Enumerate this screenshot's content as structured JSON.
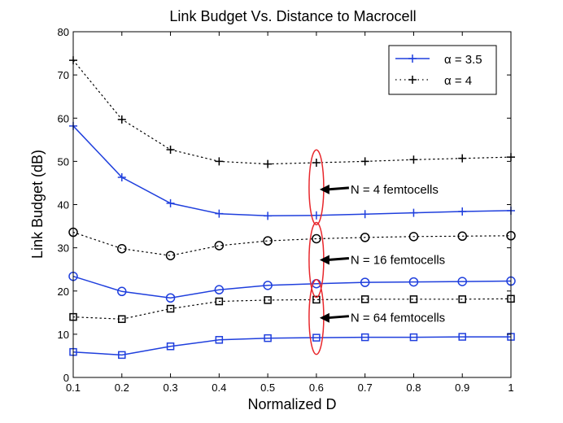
{
  "chart_data": {
    "type": "line",
    "title": "Link Budget Vs. Distance to Macrocell",
    "xlabel": "Normalized D",
    "ylabel": "Link Budget (dB)",
    "xlim": [
      0.1,
      1
    ],
    "ylim": [
      0,
      80
    ],
    "xticks": [
      0.1,
      0.2,
      0.3,
      0.4,
      0.5,
      0.6,
      0.7,
      0.8,
      0.9,
      1
    ],
    "xtick_labels": [
      "0.1",
      "0.2",
      "0.3",
      "0.4",
      "0.5",
      "0.6",
      "0.7",
      "0.8",
      "0.9",
      "1"
    ],
    "yticks": [
      0,
      10,
      20,
      30,
      40,
      50,
      60,
      70,
      80
    ],
    "ytick_labels": [
      "0",
      "10",
      "20",
      "30",
      "40",
      "50",
      "60",
      "70",
      "80"
    ],
    "grid": false,
    "legend_position": "top-right",
    "legend": [
      {
        "label": "α = 3.5",
        "color": "#1f3fdd",
        "style": "solid",
        "marker": "plus"
      },
      {
        "label": "α = 4",
        "color": "#000000",
        "style": "dotted",
        "marker": "plus"
      }
    ],
    "x": [
      0.1,
      0.2,
      0.3,
      0.4,
      0.5,
      0.6,
      0.7,
      0.8,
      0.9,
      1.0
    ],
    "series": [
      {
        "name": "α = 3.5, N = 4",
        "color": "#1f3fdd",
        "style": "solid",
        "marker": "plus",
        "values": [
          58.2,
          46.3,
          40.3,
          37.9,
          37.4,
          37.5,
          37.8,
          38.1,
          38.4,
          38.6
        ]
      },
      {
        "name": "α = 4, N = 4",
        "color": "#000000",
        "style": "dotted",
        "marker": "plus",
        "values": [
          73.4,
          59.7,
          52.7,
          50.0,
          49.4,
          49.7,
          50.0,
          50.4,
          50.7,
          51.0
        ]
      },
      {
        "name": "α = 3.5, N = 16",
        "color": "#1f3fdd",
        "style": "solid",
        "marker": "circle",
        "values": [
          23.4,
          19.9,
          18.4,
          20.3,
          21.3,
          21.7,
          22.0,
          22.1,
          22.2,
          22.3
        ]
      },
      {
        "name": "α = 4, N = 16",
        "color": "#000000",
        "style": "dotted",
        "marker": "circle",
        "values": [
          33.6,
          29.8,
          28.2,
          30.5,
          31.6,
          32.1,
          32.4,
          32.6,
          32.7,
          32.8
        ]
      },
      {
        "name": "α = 3.5, N = 64",
        "color": "#1f3fdd",
        "style": "solid",
        "marker": "square",
        "values": [
          5.9,
          5.2,
          7.2,
          8.7,
          9.1,
          9.2,
          9.3,
          9.3,
          9.4,
          9.4
        ]
      },
      {
        "name": "α = 4, N = 64",
        "color": "#000000",
        "style": "dotted",
        "marker": "square",
        "values": [
          14.0,
          13.5,
          15.9,
          17.6,
          17.9,
          18.0,
          18.1,
          18.1,
          18.1,
          18.2
        ]
      }
    ],
    "annotations": [
      {
        "text": "N = 4 femtocells",
        "arrow_to": [
          0.6,
          43.5
        ],
        "ellipse_center": [
          0.6,
          44
        ],
        "ellipse_color": "#e8262b"
      },
      {
        "text": "N = 16 femtocells",
        "arrow_to": [
          0.6,
          27.2
        ],
        "ellipse_center": [
          0.6,
          27.2
        ],
        "ellipse_color": "#e8262b"
      },
      {
        "text": "N = 64 femtocells",
        "arrow_to": [
          0.6,
          13.8
        ],
        "ellipse_center": [
          0.6,
          14.0
        ],
        "ellipse_color": "#e8262b"
      }
    ]
  }
}
